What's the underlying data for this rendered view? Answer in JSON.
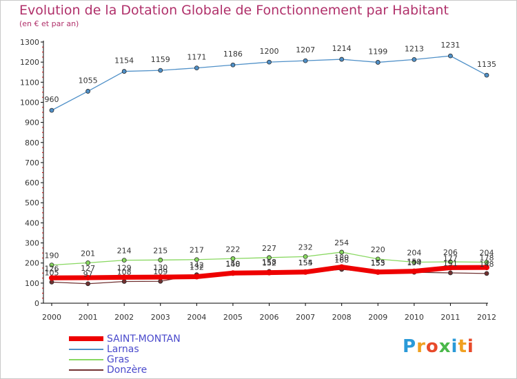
{
  "chart_data": {
    "type": "line",
    "title": "Evolution de la Dotation Globale de Fonctionnement par Habitant",
    "subtitle": "(en € et par an)",
    "x": [
      "2000",
      "2001",
      "2002",
      "2003",
      "2004",
      "2005",
      "2006",
      "2007",
      "2008",
      "2009",
      "2010",
      "2011",
      "2012"
    ],
    "yticks": [
      "0",
      "100",
      "200",
      "300",
      "400",
      "500",
      "600",
      "700",
      "800",
      "900",
      "1000",
      "1100",
      "1200",
      "1300"
    ],
    "ylim": [
      0,
      1300
    ],
    "grid": false,
    "legend_position": "bottom-left",
    "series": [
      {
        "name": "SAINT-MONTAN",
        "color": "#ee0000",
        "values": [
          126,
          127,
          129,
          130,
          132,
          150,
          152,
          155,
          180,
          155,
          159,
          177,
          178
        ],
        "labels": [
          "126",
          "127",
          "129",
          "130",
          "132",
          "150",
          "152",
          "155",
          "180",
          "155",
          "159",
          "177",
          "178"
        ]
      },
      {
        "name": "Larnas",
        "color": "#4f90c8",
        "values": [
          960,
          1055,
          1154,
          1159,
          1171,
          1186,
          1200,
          1207,
          1214,
          1199,
          1213,
          1231,
          1135
        ],
        "labels": [
          "960",
          "1055",
          "1154",
          "1159",
          "1171",
          "1186",
          "1200",
          "1207",
          "1214",
          "1199",
          "1213",
          "1231",
          "1135"
        ]
      },
      {
        "name": "Gras",
        "color": "#88d860",
        "values": [
          190,
          201,
          214,
          215,
          217,
          222,
          227,
          232,
          254,
          220,
          204,
          206,
          204
        ],
        "labels": [
          "190",
          "201",
          "214",
          "215",
          "217",
          "222",
          "227",
          "232",
          "254",
          "220",
          "204",
          "206",
          "204"
        ]
      },
      {
        "name": "Donzère",
        "color": "#703030",
        "values": [
          105,
          97,
          108,
          109,
          142,
          148,
          158,
          154,
          168,
          153,
          154,
          151,
          148
        ],
        "labels": [
          "105",
          "97",
          "108",
          "109",
          "142",
          "148",
          "158",
          "154",
          "168",
          "153",
          "154",
          "151",
          "148"
        ]
      }
    ]
  },
  "logo": {
    "text": "Proxiti"
  }
}
